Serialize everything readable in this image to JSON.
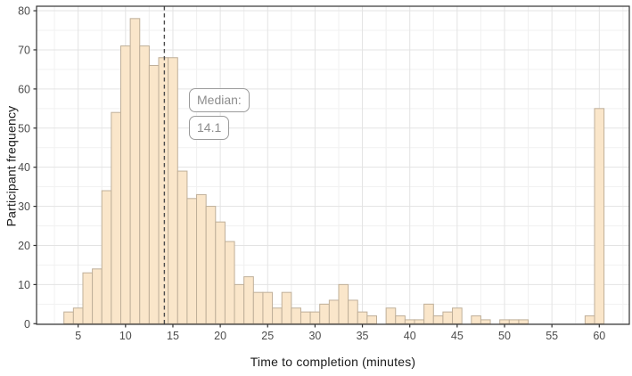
{
  "chart_data": {
    "type": "bar",
    "subtype": "histogram",
    "title": "",
    "xlabel": "Time to completion (minutes)",
    "ylabel": "Participant frequency",
    "bin_width": 1,
    "bin_centers": [
      4,
      5,
      6,
      7,
      8,
      9,
      10,
      11,
      12,
      13,
      14,
      15,
      16,
      17,
      18,
      19,
      20,
      21,
      22,
      23,
      24,
      25,
      26,
      27,
      28,
      29,
      30,
      31,
      32,
      33,
      34,
      35,
      36,
      37,
      38,
      39,
      40,
      41,
      42,
      43,
      44,
      45,
      46,
      47,
      48,
      49,
      50,
      51,
      52,
      53,
      54,
      55,
      56,
      57,
      58,
      59,
      60
    ],
    "frequencies": [
      3,
      4,
      13,
      14,
      34,
      54,
      71,
      78,
      71,
      66,
      68,
      68,
      39,
      32,
      33,
      30,
      26,
      21,
      10,
      12,
      8,
      8,
      4,
      8,
      4,
      3,
      3,
      5,
      6,
      10,
      6,
      3,
      2,
      0,
      4,
      2,
      1,
      1,
      5,
      2,
      3,
      4,
      0,
      2,
      1,
      0,
      1,
      1,
      1,
      0,
      0,
      0,
      0,
      0,
      0,
      2,
      55
    ],
    "x_ticks": [
      5,
      10,
      15,
      20,
      25,
      30,
      35,
      40,
      45,
      50,
      55,
      60
    ],
    "y_ticks": [
      0,
      10,
      20,
      30,
      40,
      50,
      60,
      70,
      80
    ],
    "xlim": [
      0.61,
      63.17
    ],
    "ylim": [
      -0.16,
      81.15
    ],
    "grid": "major+minor",
    "legend": "none",
    "median": 14.1,
    "annotation": {
      "label_text": "Median:",
      "value_text": "14.1"
    },
    "colors": {
      "bar_fill": "#FAE6CA",
      "bar_stroke": "#BFAF99",
      "median_line": "#4d4d4d",
      "panel_border": "#333333",
      "grid_major": "#e3e3e3",
      "grid_minor": "#f1f1f1",
      "tick_text": "#4d4d4d",
      "axis_title_text": "#1a1a1a",
      "annotation_text": "#8d8d8d",
      "annotation_border": "#9b9b9b",
      "background": "#ffffff"
    }
  }
}
